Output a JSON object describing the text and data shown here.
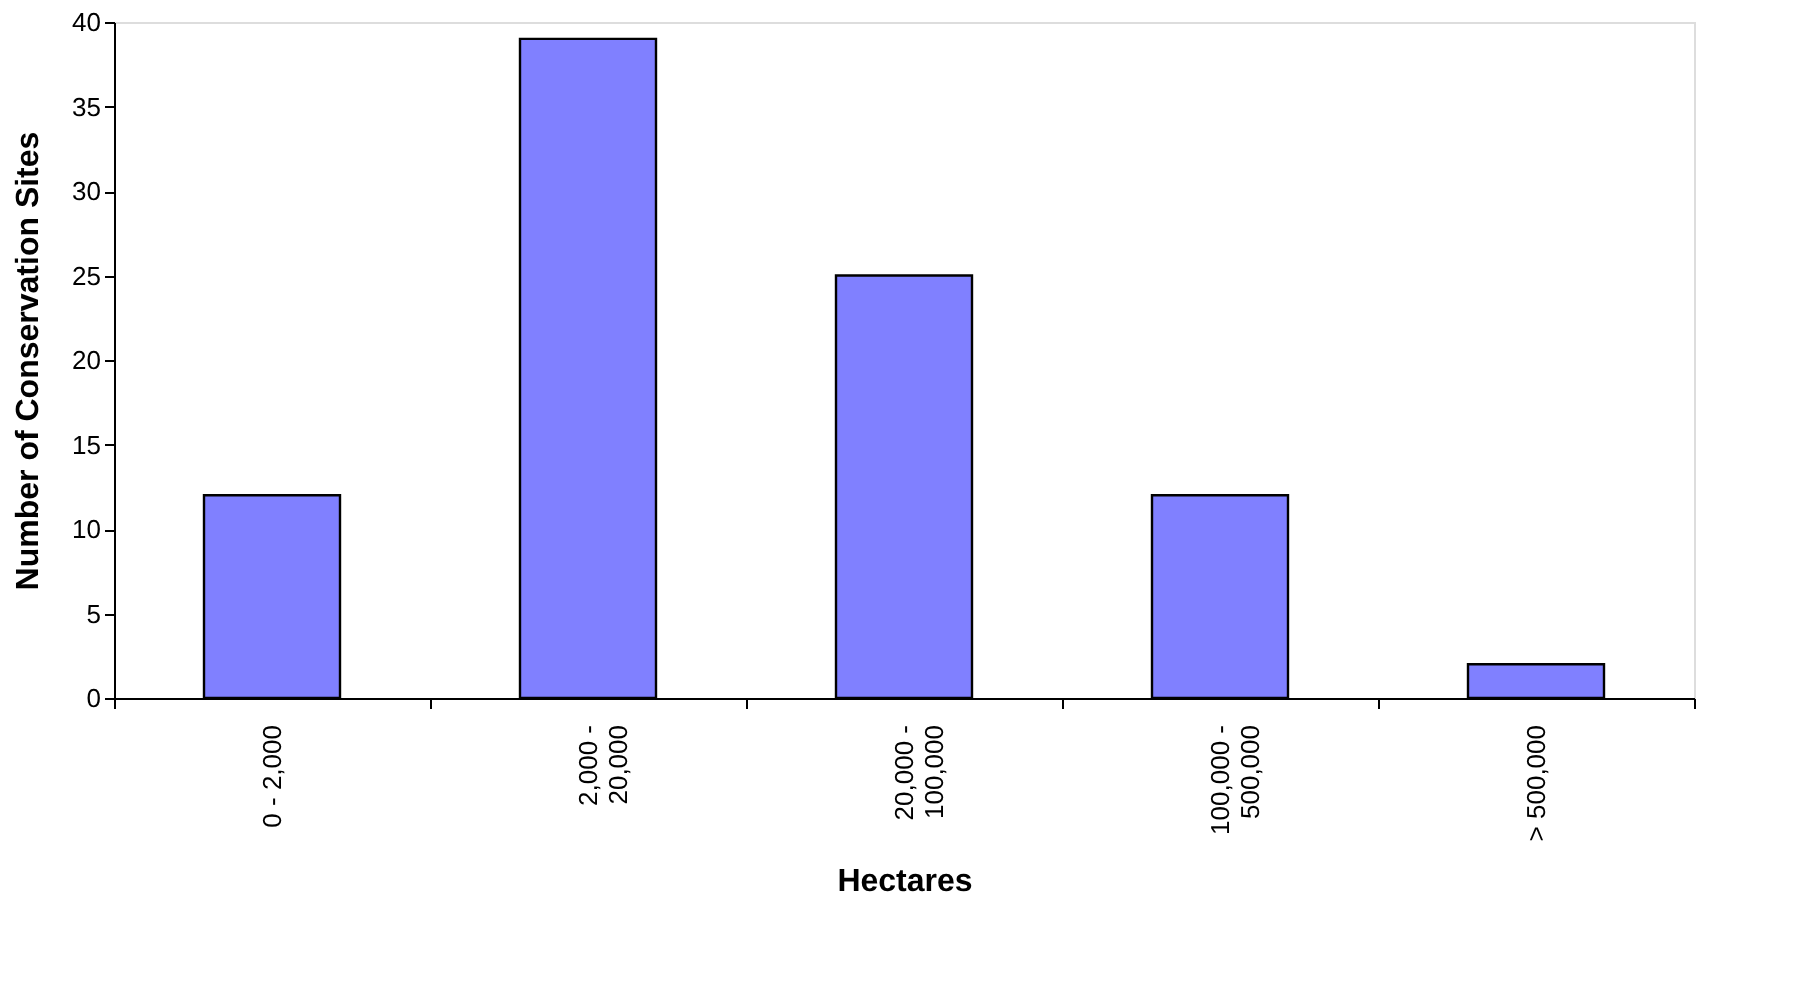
{
  "chart_data": {
    "type": "bar",
    "xlabel": "Hectares",
    "ylabel": "Number of Conservation Sites",
    "categories": [
      "0 - 2,000",
      "2,000 -\n20,000",
      "20,000 -\n100,000",
      "100,000 -\n500,000",
      "> 500,000"
    ],
    "values": [
      12,
      39,
      25,
      12,
      2
    ],
    "color": "#8080ff",
    "ylim": [
      0,
      40
    ],
    "yticks": [
      0,
      5,
      10,
      15,
      20,
      25,
      30,
      35,
      40
    ],
    "grid": false
  }
}
